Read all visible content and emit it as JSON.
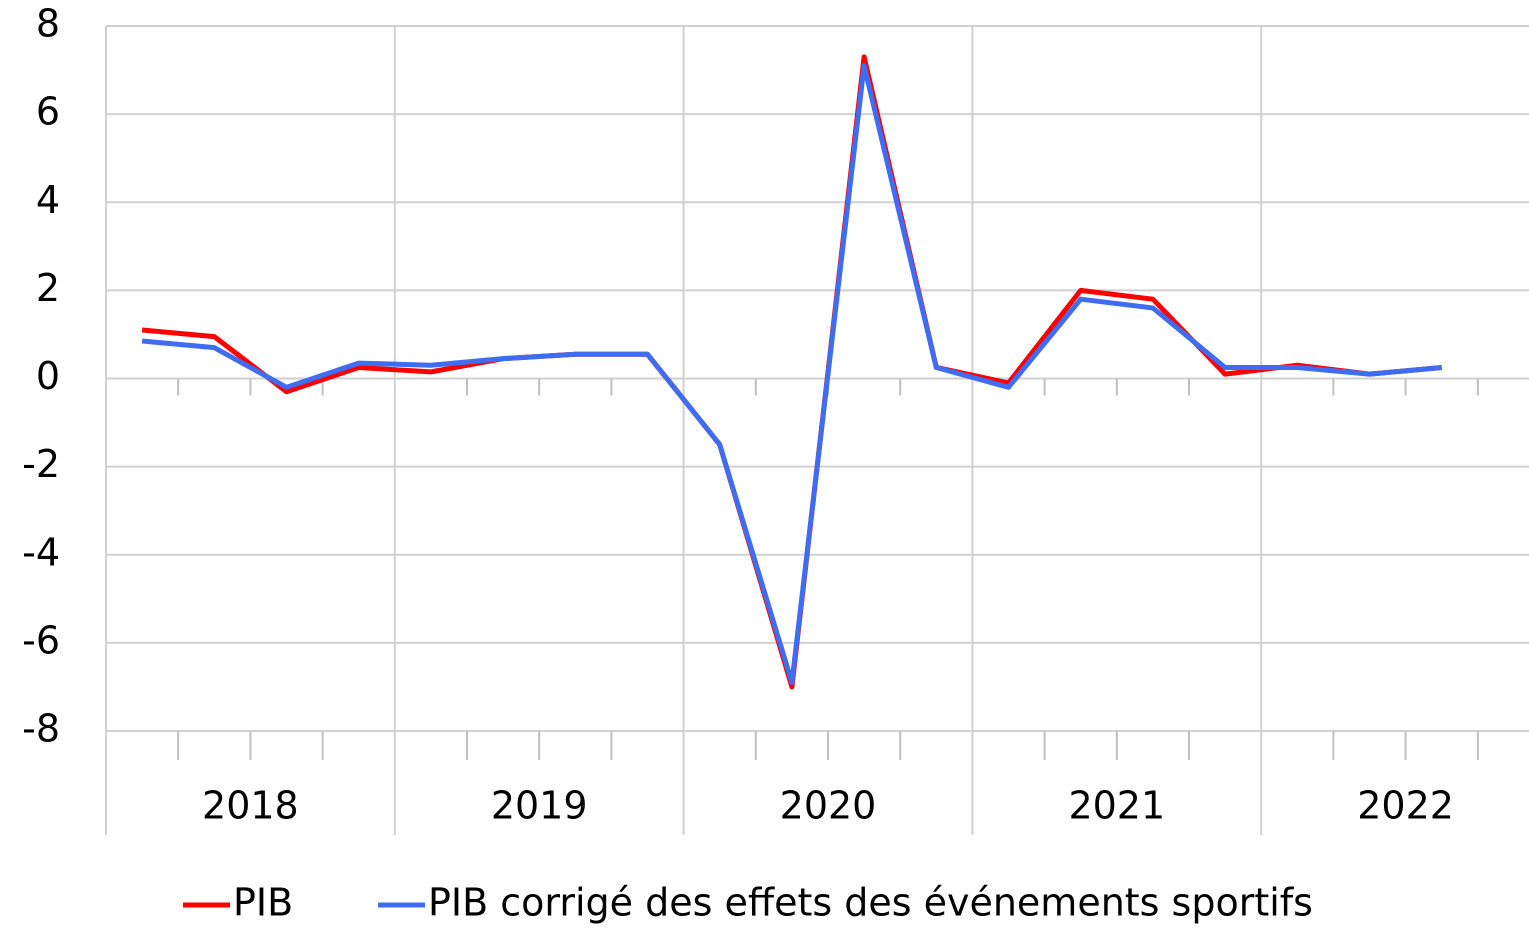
{
  "chart_data": {
    "type": "line",
    "categories": [
      null,
      null,
      null,
      null,
      null,
      null,
      null,
      null,
      null,
      null,
      null,
      null,
      null,
      null,
      null,
      null,
      null,
      null,
      null
    ],
    "x_groups": [
      "2018",
      "2019",
      "2020",
      "2021",
      "2022"
    ],
    "series": [
      {
        "name": "PIB",
        "color": "#ff0000",
        "values": [
          1.1,
          0.95,
          -0.3,
          0.25,
          0.15,
          0.45,
          0.55,
          0.55,
          -1.5,
          -7.0,
          7.3,
          0.25,
          -0.1,
          2.0,
          1.8,
          0.1,
          0.3,
          0.1,
          0.25
        ]
      },
      {
        "name": "PIB corrigé des effets des événements sportifs",
        "color": "#3f6df2",
        "values": [
          0.85,
          0.7,
          -0.2,
          0.35,
          0.3,
          0.45,
          0.55,
          0.55,
          -1.5,
          -6.9,
          7.1,
          0.25,
          -0.2,
          1.8,
          1.6,
          0.25,
          0.25,
          0.1,
          0.25
        ]
      }
    ],
    "ylim": [
      -8,
      8
    ],
    "yticks": [
      -8,
      -6,
      -4,
      -2,
      0,
      2,
      4,
      6,
      8
    ],
    "grid": true,
    "legend": "bottom"
  }
}
